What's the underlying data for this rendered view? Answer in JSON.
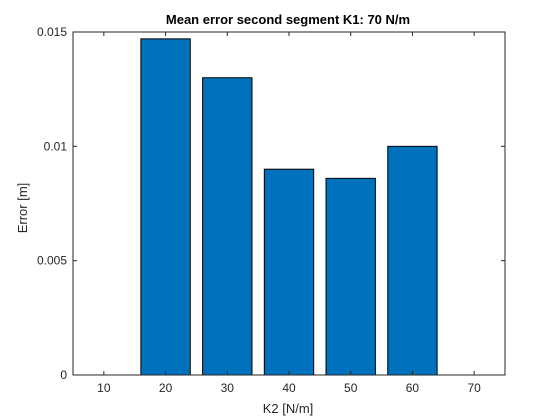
{
  "chart_data": {
    "type": "bar",
    "title": "Mean error second segment K1: 70 N/m",
    "xlabel": "K2 [N/m]",
    "ylabel": "Error [m]",
    "x": [
      20,
      30,
      40,
      50,
      60
    ],
    "values": [
      0.0147,
      0.013,
      0.009,
      0.0086,
      0.01
    ],
    "xlim": [
      5,
      75
    ],
    "ylim": [
      0,
      0.015
    ],
    "xticks": [
      10,
      20,
      30,
      40,
      50,
      60,
      70
    ],
    "yticks": [
      0,
      0.005,
      0.01,
      0.015
    ],
    "xtick_labels": [
      "10",
      "20",
      "30",
      "40",
      "50",
      "60",
      "70"
    ],
    "ytick_labels": [
      "0",
      "0.005",
      "0.01",
      "0.015"
    ],
    "grid": false,
    "bar_color": "#0072BD"
  }
}
